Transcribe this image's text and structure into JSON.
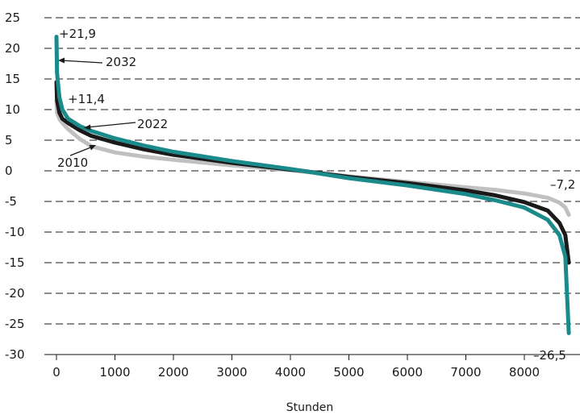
{
  "chart_data": {
    "type": "line",
    "xlabel": "Stunden",
    "ylabel": "",
    "xlim": [
      -200,
      8800
    ],
    "ylim": [
      -30,
      25
    ],
    "x_ticks": [
      "0",
      "1000",
      "2000",
      "3000",
      "4000",
      "5000",
      "6000",
      "7000",
      "8000"
    ],
    "y_ticks": [
      "25",
      "20",
      "15",
      "10",
      "5",
      "0",
      "-5",
      "-10",
      "-15",
      "-20",
      "-25",
      "-30"
    ],
    "grid": "horizontal dashed",
    "colors": {
      "2032": "#1a8a8a",
      "2022": "#1a1a1a",
      "2010": "#c0c0c0"
    },
    "series": [
      {
        "name": "2010",
        "x": [
          0,
          10,
          50,
          100,
          200,
          400,
          600,
          1000,
          1500,
          2000,
          3000,
          4000,
          4200,
          5000,
          6000,
          7000,
          7500,
          8000,
          8400,
          8600,
          8700,
          8760
        ],
        "values": [
          11.4,
          9.5,
          8.5,
          7.8,
          6.8,
          5.2,
          4.0,
          3.0,
          2.3,
          1.8,
          0.9,
          0.1,
          -0.1,
          -0.9,
          -1.8,
          -2.7,
          -3.1,
          -3.7,
          -4.4,
          -5.2,
          -6.0,
          -7.2
        ]
      },
      {
        "name": "2022",
        "x": [
          0,
          10,
          50,
          100,
          200,
          400,
          600,
          1000,
          1500,
          2000,
          3000,
          4000,
          4200,
          5000,
          6000,
          7000,
          7500,
          8000,
          8400,
          8600,
          8700,
          8760
        ],
        "values": [
          14.5,
          11.5,
          9.5,
          8.5,
          7.8,
          6.6,
          5.7,
          4.6,
          3.5,
          2.6,
          1.3,
          0.2,
          0.0,
          -1.0,
          -2.0,
          -3.2,
          -4.0,
          -5.1,
          -6.5,
          -8.5,
          -10.5,
          -15.0
        ]
      },
      {
        "name": "2032",
        "x": [
          0,
          10,
          50,
          100,
          200,
          400,
          600,
          1000,
          1500,
          2000,
          3000,
          4000,
          4200,
          5000,
          6000,
          7000,
          7500,
          8000,
          8400,
          8600,
          8700,
          8760
        ],
        "values": [
          21.9,
          16.0,
          12.0,
          10.0,
          8.5,
          7.3,
          6.5,
          5.3,
          4.1,
          3.1,
          1.6,
          0.3,
          0.0,
          -1.2,
          -2.4,
          -3.8,
          -4.8,
          -6.0,
          -8.0,
          -10.5,
          -14.0,
          -26.5
        ]
      }
    ],
    "annotations": {
      "max_2032": "+21,9",
      "max_2010": "+11,4",
      "min_2010": "–7,2",
      "min_2032": "–26,5",
      "label_2032": "2032",
      "label_2022": "2022",
      "label_2010": "2010"
    }
  }
}
